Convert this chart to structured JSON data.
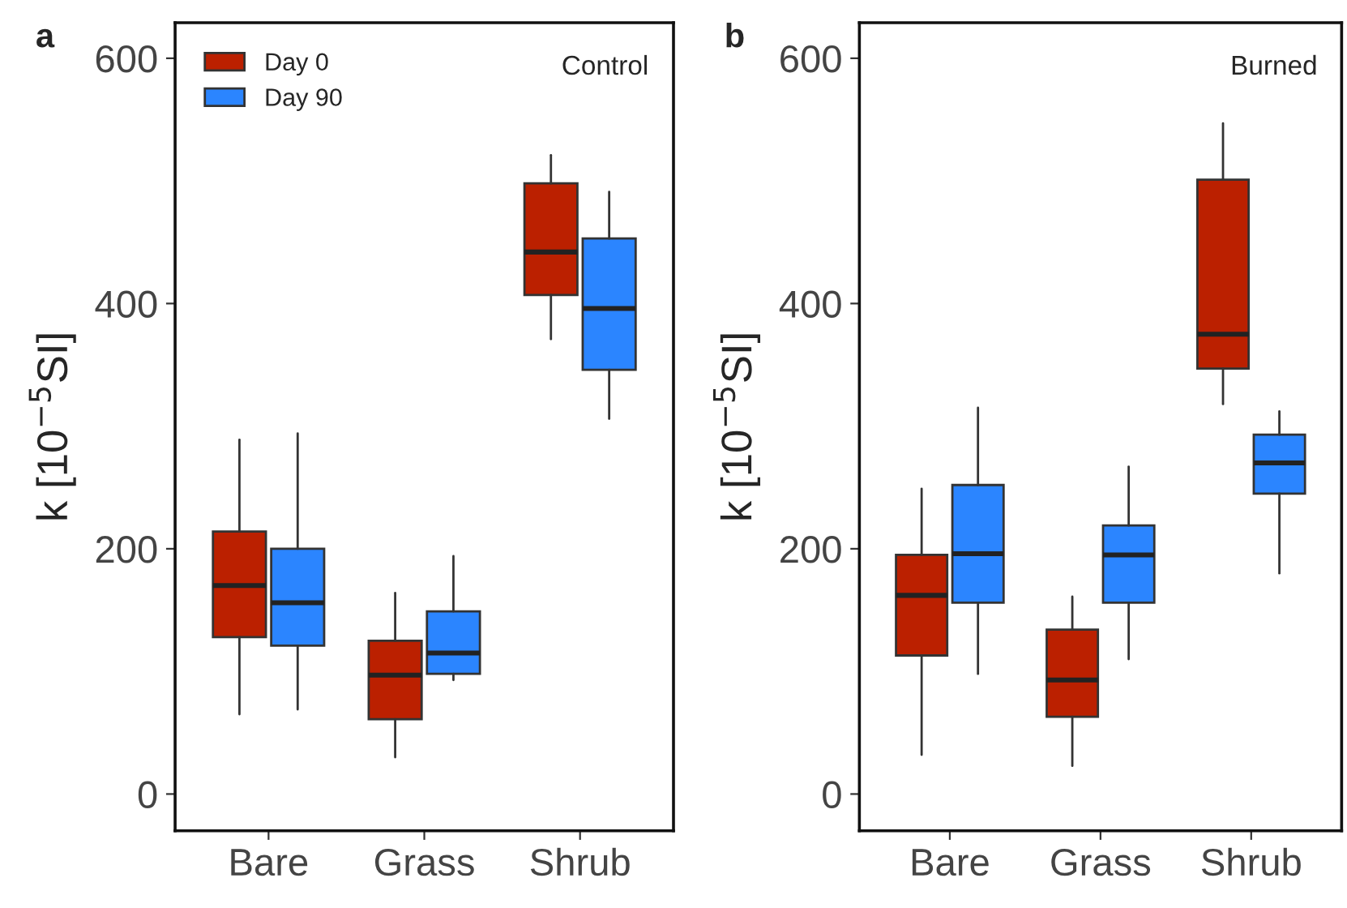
{
  "chart_data": [
    {
      "type": "box",
      "categories": [
        "Bare",
        "Grass",
        "Shrub"
      ],
      "ylabel": "k [10$^{−5}$SI]",
      "ylim": [
        -30,
        629
      ],
      "yticks": [
        0,
        200,
        400,
        600
      ],
      "grid": false,
      "legend": "top left",
      "annotations": [
        "a",
        "Control"
      ],
      "series": [
        {
          "name": "Day 0",
          "color": "#bb2000",
          "boxes": [
            {
              "low": 65,
              "q1": 128,
              "median": 170,
              "q3": 214,
              "high": 289
            },
            {
              "low": 30,
              "q1": 61,
              "median": 97,
              "q3": 125,
              "high": 164
            },
            {
              "low": 371,
              "q1": 407,
              "median": 442,
              "q3": 498,
              "high": 521
            }
          ]
        },
        {
          "name": "Day 90",
          "color": "#2b85ff",
          "boxes": [
            {
              "low": 69,
              "q1": 121,
              "median": 156,
              "q3": 200,
              "high": 294
            },
            {
              "low": 93,
              "q1": 98,
              "median": 115,
              "q3": 149,
              "high": 194
            },
            {
              "low": 306,
              "q1": 346,
              "median": 396,
              "q3": 453,
              "high": 491
            }
          ]
        }
      ]
    },
    {
      "type": "box",
      "categories": [
        "Bare",
        "Grass",
        "Shrub"
      ],
      "ylabel": "k [10$^{−5}$SI]",
      "ylim": [
        -30,
        629
      ],
      "yticks": [
        0,
        200,
        400,
        600
      ],
      "grid": false,
      "annotations": [
        "b",
        "Burned"
      ],
      "series": [
        {
          "color": "#bb2000",
          "boxes": [
            {
              "low": 32,
              "q1": 113,
              "median": 162,
              "q3": 195,
              "high": 249
            },
            {
              "low": 23,
              "q1": 63,
              "median": 93,
              "q3": 134,
              "high": 161
            },
            {
              "low": 318,
              "q1": 347,
              "median": 375,
              "q3": 501,
              "high": 547
            }
          ]
        },
        {
          "color": "#2b85ff",
          "boxes": [
            {
              "low": 98,
              "q1": 156,
              "median": 196,
              "q3": 252,
              "high": 315
            },
            {
              "low": 110,
              "q1": 156,
              "median": 195,
              "q3": 219,
              "high": 267
            },
            {
              "low": 180,
              "q1": 245,
              "median": 270,
              "q3": 293,
              "high": 312
            }
          ]
        }
      ]
    }
  ]
}
